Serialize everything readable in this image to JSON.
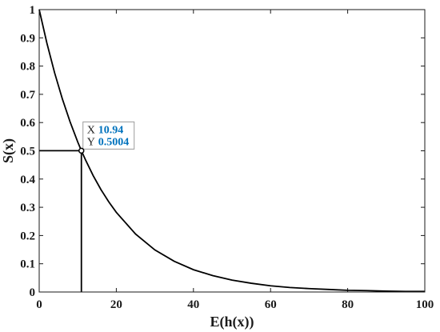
{
  "chart_data": {
    "type": "line",
    "title": "",
    "xlabel": "E(h(x))",
    "ylabel": "S(x)",
    "xlim": [
      0,
      100
    ],
    "ylim": [
      0,
      1
    ],
    "x_ticks": [
      "0",
      "20",
      "40",
      "60",
      "80",
      "100"
    ],
    "y_ticks": [
      "0",
      "0.1",
      "0.2",
      "0.3",
      "0.4",
      "0.5",
      "0.6",
      "0.7",
      "0.8",
      "0.9",
      "1"
    ],
    "grid": false,
    "series": [
      {
        "x": [
          0,
          2,
          4,
          6,
          8,
          10,
          10.94,
          12,
          14,
          16,
          18,
          20,
          25,
          30,
          35,
          40,
          45,
          50,
          55,
          60,
          65,
          70,
          75,
          80,
          85,
          90,
          95,
          100
        ],
        "y": [
          1.0,
          0.881,
          0.776,
          0.684,
          0.603,
          0.531,
          0.5004,
          0.468,
          0.412,
          0.363,
          0.32,
          0.282,
          0.205,
          0.149,
          0.109,
          0.079,
          0.058,
          0.042,
          0.031,
          0.022,
          0.016,
          0.012,
          0.009,
          0.006,
          0.005,
          0.003,
          0.002,
          0.002
        ],
        "color": "#000000"
      }
    ],
    "reference_lines": {
      "x": 10.94,
      "y": 0.5004
    },
    "datatip": {
      "x_key": "X",
      "x_value": "10.94",
      "y_key": "Y",
      "y_value": "0.5004",
      "value_color": "#0072bd"
    }
  }
}
